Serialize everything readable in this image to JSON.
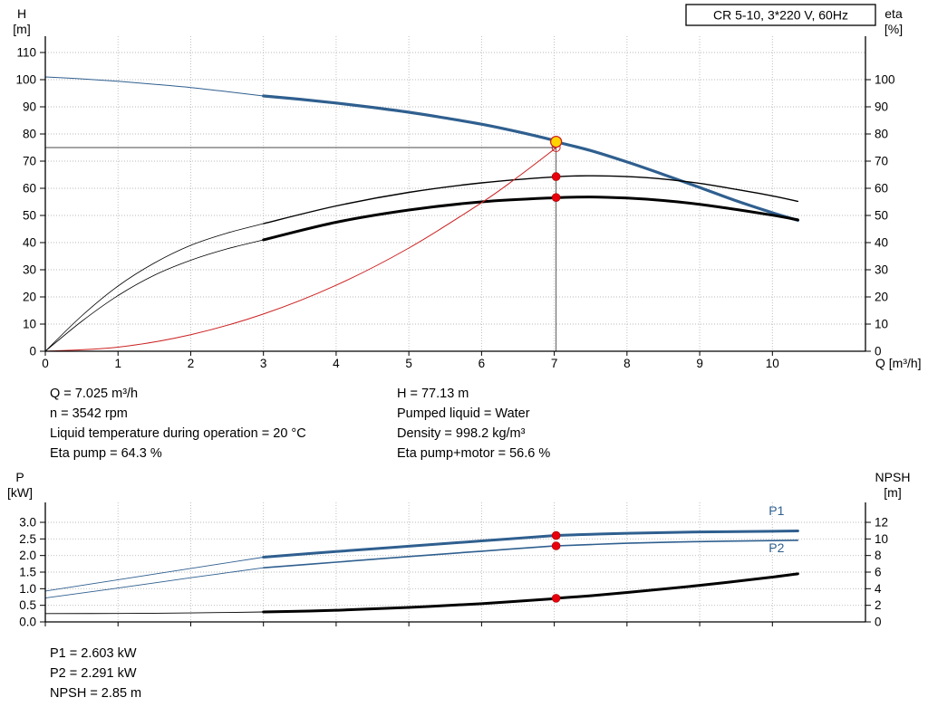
{
  "colors": {
    "blue": "#2f5f8f",
    "black": "#000000",
    "red": "#cc2020",
    "dot_red": "#e8000d",
    "duty_yellow": "#ffd400",
    "grid": "#b9b9b9",
    "guide": "#4a4a4a"
  },
  "info_top": {
    "left": [
      "Q = 7.025 m³/h",
      "n = 3542 rpm",
      "Liquid temperature during operation = 20 °C",
      "Eta pump = 64.3 %"
    ],
    "right": [
      "H = 77.13 m",
      "Pumped liquid = Water",
      "Density = 998.2 kg/m³",
      "Eta pump+motor = 56.6 %"
    ]
  },
  "info_bottom": [
    "P1 = 2.603 kW",
    "P2 = 2.291 kW",
    "NPSH = 2.85 m"
  ],
  "chart_data": [
    {
      "type": "line",
      "title": "CR 5-10, 3*220 V, 60Hz",
      "xlabel": "Q [m³/h]",
      "ylabel_left": [
        "H",
        "[m]"
      ],
      "ylabel_right": [
        "eta",
        "[%]"
      ],
      "xlim": [
        0,
        11.28
      ],
      "x_ticks": {
        "min": 0,
        "max": 10,
        "step": 1,
        "decimals": 0,
        "labels": true
      },
      "ylim_left": [
        0,
        116
      ],
      "y_ticks_left": {
        "min": 0,
        "max": 110,
        "step": 10,
        "decimals": 0
      },
      "ylim_right": [
        0,
        116
      ],
      "y_ticks_right": {
        "min": 0,
        "max": 100,
        "step": 10,
        "decimals": 0
      },
      "duty_point": {
        "Q": 7.025,
        "H": 77.13,
        "eta_pump": 64.3,
        "eta_pump_motor": 56.6
      },
      "series": [
        {
          "id": "pump-curve-leadin",
          "name": "H pump curve (outside range)",
          "axis": "left",
          "color": "blue",
          "width": 1,
          "points": [
            [
              0,
              101
            ],
            [
              0.5,
              100.3
            ],
            [
              1,
              99.4
            ],
            [
              1.5,
              98.3
            ],
            [
              2,
              97.1
            ],
            [
              2.5,
              95.6
            ],
            [
              3,
              94
            ]
          ]
        },
        {
          "id": "pump-curve",
          "name": "H pump curve",
          "axis": "left",
          "color": "blue",
          "width": 3.2,
          "points": [
            [
              3,
              94
            ],
            [
              3.5,
              92.8
            ],
            [
              4,
              91.4
            ],
            [
              4.5,
              89.8
            ],
            [
              5,
              88
            ],
            [
              5.5,
              85.9
            ],
            [
              6,
              83.6
            ],
            [
              6.5,
              80.8
            ],
            [
              7,
              77.6
            ],
            [
              7.025,
              77.13
            ],
            [
              7.5,
              73.9
            ],
            [
              8,
              69.7
            ],
            [
              8.5,
              65.1
            ],
            [
              9,
              60.3
            ],
            [
              9.5,
              55.4
            ],
            [
              10,
              51
            ],
            [
              10.35,
              48.2
            ]
          ]
        },
        {
          "id": "eta-pump-leadin",
          "name": "Eta pump (outside range)",
          "axis": "right",
          "color": "black",
          "width": 0.8,
          "points": [
            [
              0,
              0
            ],
            [
              0.5,
              13
            ],
            [
              1,
              24
            ],
            [
              1.5,
              32.5
            ],
            [
              2,
              39
            ],
            [
              2.5,
              43.5
            ],
            [
              3,
              47
            ]
          ]
        },
        {
          "id": "eta-pump-curve",
          "name": "Eta pump",
          "axis": "right",
          "color": "black",
          "width": 1.4,
          "points": [
            [
              3,
              47
            ],
            [
              4,
              53.5
            ],
            [
              5,
              58.5
            ],
            [
              6,
              62
            ],
            [
              7,
              64.2
            ],
            [
              7.5,
              64.6
            ],
            [
              8,
              64.3
            ],
            [
              8.5,
              63.4
            ],
            [
              9,
              61.8
            ],
            [
              9.5,
              59.6
            ],
            [
              10,
              57.2
            ],
            [
              10.35,
              55.2
            ]
          ]
        },
        {
          "id": "eta-pump-motor-leadin",
          "name": "Eta pump+motor (outside range)",
          "axis": "right",
          "color": "black",
          "width": 0.8,
          "points": [
            [
              0,
              0
            ],
            [
              0.5,
              11
            ],
            [
              1,
              20.5
            ],
            [
              1.5,
              28
            ],
            [
              2,
              33.5
            ],
            [
              2.5,
              37.7
            ],
            [
              3,
              41
            ]
          ]
        },
        {
          "id": "eta-pump-motor-curve",
          "name": "Eta pump+motor",
          "axis": "right",
          "color": "black",
          "width": 3,
          "points": [
            [
              3,
              41
            ],
            [
              4,
              47.5
            ],
            [
              5,
              52
            ],
            [
              6,
              55
            ],
            [
              7,
              56.5
            ],
            [
              7.5,
              56.8
            ],
            [
              8,
              56.4
            ],
            [
              8.5,
              55.5
            ],
            [
              9,
              54.1
            ],
            [
              9.5,
              52.2
            ],
            [
              10,
              50.1
            ],
            [
              10.35,
              48.4
            ]
          ]
        },
        {
          "id": "system-curve",
          "name": "Requested duty curve",
          "axis": "left",
          "color": "red",
          "width": 1,
          "points": [
            [
              0,
              0
            ],
            [
              1,
              1.5
            ],
            [
              2,
              6.1
            ],
            [
              3,
              13.7
            ],
            [
              4,
              24.3
            ],
            [
              5,
              38
            ],
            [
              6,
              54.7
            ],
            [
              6.5,
              64.2
            ],
            [
              7,
              74.4
            ],
            [
              7.025,
              75
            ]
          ]
        }
      ],
      "guides": [
        {
          "id": "duty-h-guide",
          "orient": "h",
          "value": 75,
          "from": 0,
          "to": 7.025
        },
        {
          "id": "duty-v-guide",
          "orient": "v",
          "value": 7.025,
          "from": 0,
          "to": 77.13
        }
      ],
      "markers": [
        {
          "id": "requested-duty-point",
          "axis": "left",
          "x": 7.025,
          "y": 75,
          "style": "open"
        },
        {
          "id": "eta-pump-point",
          "axis": "right",
          "x": 7.025,
          "y": 64.3,
          "style": "dot"
        },
        {
          "id": "eta-pump-motor-point",
          "axis": "right",
          "x": 7.025,
          "y": 56.6,
          "style": "dot"
        },
        {
          "id": "duty-point",
          "axis": "left",
          "x": 7.025,
          "y": 77.13,
          "style": "duty"
        }
      ],
      "annotations": []
    },
    {
      "type": "line",
      "title": "",
      "xlabel": "",
      "ylabel_left": [
        "P",
        "[kW]"
      ],
      "ylabel_right": [
        "NPSH",
        "[m]"
      ],
      "xlim": [
        0,
        11.28
      ],
      "x_ticks": {
        "min": 0,
        "max": 10,
        "step": 1,
        "decimals": 0,
        "labels": false
      },
      "ylim_left": [
        0,
        3.6
      ],
      "y_ticks_left": {
        "min": 0,
        "max": 3,
        "step": 0.5,
        "decimals": 1
      },
      "ylim_right": [
        0,
        14.4
      ],
      "y_ticks_right": {
        "min": 0,
        "max": 12,
        "step": 2,
        "decimals": 0
      },
      "duty_point": {
        "Q": 7.025,
        "P1": 2.603,
        "P2": 2.291,
        "NPSH": 2.85
      },
      "series": [
        {
          "id": "p1-leadin",
          "name": "P1 (outside range)",
          "axis": "left",
          "color": "blue",
          "width": 0.9,
          "points": [
            [
              0,
              0.93
            ],
            [
              1,
              1.27
            ],
            [
              2,
              1.61
            ],
            [
              3,
              1.95
            ]
          ]
        },
        {
          "id": "p1-curve",
          "name": "P1",
          "axis": "left",
          "color": "blue",
          "width": 3,
          "points": [
            [
              3,
              1.95
            ],
            [
              4,
              2.12
            ],
            [
              5,
              2.28
            ],
            [
              6,
              2.44
            ],
            [
              7,
              2.6
            ],
            [
              7.025,
              2.603
            ],
            [
              7.5,
              2.64
            ],
            [
              8,
              2.67
            ],
            [
              9,
              2.71
            ],
            [
              10,
              2.73
            ],
            [
              10.35,
              2.74
            ]
          ]
        },
        {
          "id": "p2-leadin",
          "name": "P2 (outside range)",
          "axis": "left",
          "color": "blue",
          "width": 0.9,
          "points": [
            [
              0,
              0.72
            ],
            [
              1,
              1.02
            ],
            [
              2,
              1.33
            ],
            [
              3,
              1.63
            ]
          ]
        },
        {
          "id": "p2-curve",
          "name": "P2",
          "axis": "left",
          "color": "blue",
          "width": 1.6,
          "points": [
            [
              3,
              1.63
            ],
            [
              4,
              1.8
            ],
            [
              5,
              1.97
            ],
            [
              6,
              2.13
            ],
            [
              7,
              2.29
            ],
            [
              7.025,
              2.291
            ],
            [
              7.5,
              2.33
            ],
            [
              8,
              2.37
            ],
            [
              9,
              2.42
            ],
            [
              10,
              2.45
            ],
            [
              10.35,
              2.46
            ]
          ]
        },
        {
          "id": "npsh-leadin",
          "name": "NPSH (outside range)",
          "axis": "right",
          "color": "black",
          "width": 0.9,
          "points": [
            [
              0,
              1.0
            ],
            [
              1,
              1.02
            ],
            [
              2,
              1.08
            ],
            [
              3,
              1.2
            ]
          ]
        },
        {
          "id": "npsh-curve",
          "name": "NPSH",
          "axis": "right",
          "color": "black",
          "width": 3,
          "points": [
            [
              3,
              1.2
            ],
            [
              4,
              1.4
            ],
            [
              5,
              1.75
            ],
            [
              6,
              2.2
            ],
            [
              7,
              2.8
            ],
            [
              7.025,
              2.85
            ],
            [
              7.5,
              3.15
            ],
            [
              8,
              3.55
            ],
            [
              9,
              4.4
            ],
            [
              10,
              5.4
            ],
            [
              10.35,
              5.8
            ]
          ]
        }
      ],
      "guides": [],
      "markers": [
        {
          "id": "p1-point",
          "axis": "left",
          "x": 7.025,
          "y": 2.603,
          "style": "dot"
        },
        {
          "id": "p2-point",
          "axis": "left",
          "x": 7.025,
          "y": 2.291,
          "style": "dot"
        },
        {
          "id": "npsh-point",
          "axis": "right",
          "x": 7.025,
          "y": 2.85,
          "style": "dot"
        }
      ],
      "annotations": [
        {
          "id": "p1-label",
          "text": "P1",
          "x": 9.95,
          "y": 3.22,
          "axis": "left",
          "color": "blue"
        },
        {
          "id": "p2-label",
          "text": "P2",
          "x": 9.95,
          "y": 2.1,
          "axis": "left",
          "color": "blue"
        }
      ]
    }
  ]
}
